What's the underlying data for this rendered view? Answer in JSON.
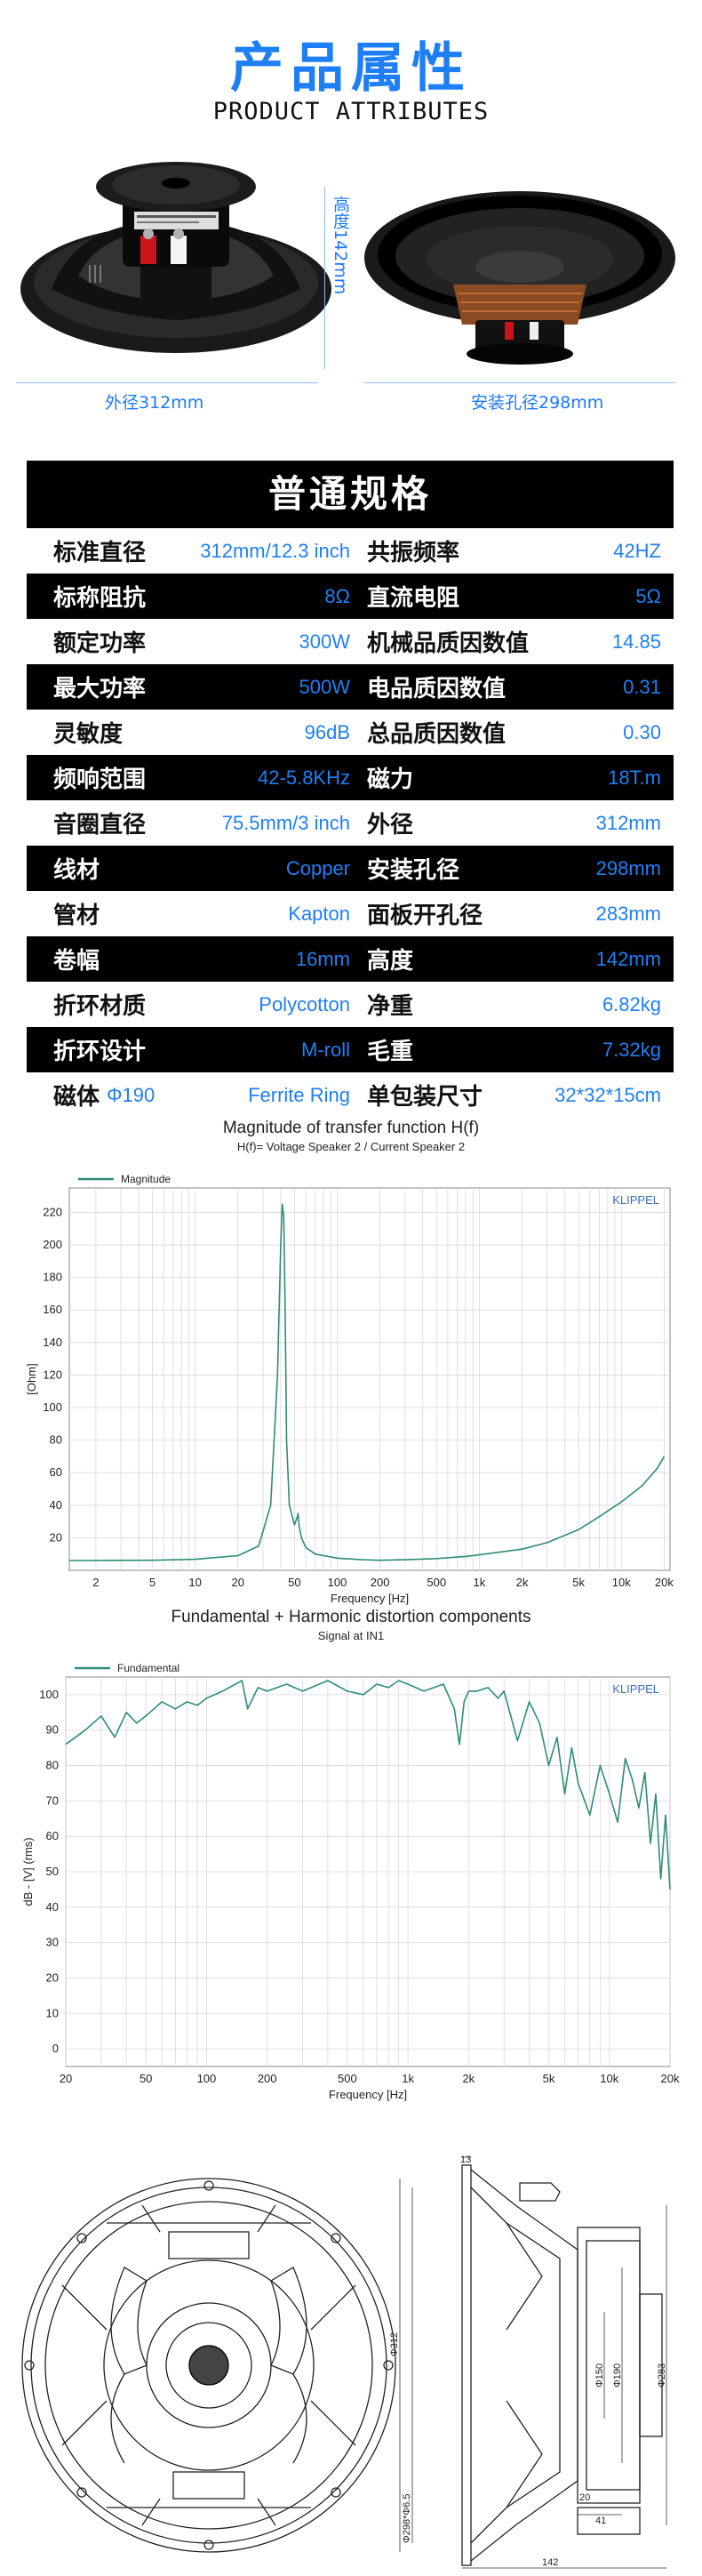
{
  "header": {
    "title": "产品属性",
    "subtitle": "PRODUCT ATTRIBUTES"
  },
  "photos": {
    "outer_diameter_label": "外径312mm",
    "height_label": "高度142mm",
    "mount_hole_label": "安装孔径298mm"
  },
  "spec": {
    "title": "普通规格",
    "rows": [
      {
        "l1": "标准直径",
        "v1": "312mm/12.3 inch",
        "l2": "共振频率",
        "v2": "42HZ"
      },
      {
        "l1": "标称阻抗",
        "v1": "8Ω",
        "l2": "直流电阻",
        "v2": "5Ω"
      },
      {
        "l1": "额定功率",
        "v1": "300W",
        "l2": "机械品质因数值",
        "v2": "14.85"
      },
      {
        "l1": "最大功率",
        "v1": "500W",
        "l2": "电品质因数值",
        "v2": "0.31"
      },
      {
        "l1": "灵敏度",
        "v1": "96dB",
        "l2": "总品质因数值",
        "v2": "0.30"
      },
      {
        "l1": "频响范围",
        "v1": "42-5.8KHz",
        "l2": "磁力",
        "v2": "18T.m"
      },
      {
        "l1": "音圈直径",
        "v1": "75.5mm/3 inch",
        "l2": "外径",
        "v2": "312mm"
      },
      {
        "l1": "线材",
        "v1": "Copper",
        "l2": "安装孔径",
        "v2": "298mm"
      },
      {
        "l1": "管材",
        "v1": "Kapton",
        "l2": "面板开孔径",
        "v2": "283mm"
      },
      {
        "l1": "卷幅",
        "v1": "16mm",
        "l2": "高度",
        "v2": "142mm"
      },
      {
        "l1": "折环材质",
        "v1": "Polycotton",
        "l2": "净重",
        "v2": "6.82kg"
      },
      {
        "l1": "折环设计",
        "v1": "M-roll",
        "l2": "毛重",
        "v2": "7.32kg"
      },
      {
        "l1": "磁体",
        "v1a": "Φ190",
        "v1": "Ferrite Ring",
        "l2": "单包装尺寸",
        "v2": "32*32*15cm"
      }
    ]
  },
  "chart_data": [
    {
      "type": "line",
      "title": "Magnitude of transfer function H(f)",
      "subtitle": "H(f)= Voltage Speaker 2 / Current Speaker 2",
      "brand": "KLIPPEL",
      "xlabel": "Frequency [Hz]",
      "ylabel": "[Ohm]",
      "xscale": "log",
      "xlim": [
        1.3,
        22000
      ],
      "ylim": [
        0,
        235
      ],
      "x_ticks": [
        2,
        5,
        10,
        20,
        50,
        100,
        200,
        500,
        1000,
        2000,
        5000,
        10000,
        20000
      ],
      "x_tick_labels": [
        "2",
        "5",
        "10",
        "20",
        "50",
        "100",
        "200",
        "500",
        "1k",
        "2k",
        "5k",
        "10k",
        "20k"
      ],
      "y_ticks": [
        20,
        40,
        60,
        80,
        100,
        120,
        140,
        160,
        180,
        200,
        220
      ],
      "legend_position": "top-left",
      "series": [
        {
          "name": "Magnitude",
          "color": "#2e8b7a",
          "x": [
            1.3,
            5,
            10,
            20,
            28,
            34,
            38,
            40,
            41,
            42,
            43,
            44,
            46,
            50,
            52,
            53,
            54,
            56,
            60,
            70,
            80,
            100,
            150,
            200,
            300,
            500,
            800,
            1000,
            2000,
            3000,
            5000,
            7000,
            10000,
            14000,
            18000,
            20000
          ],
          "y": [
            6,
            6.2,
            6.8,
            9,
            15,
            40,
            120,
            200,
            225,
            218,
            160,
            80,
            40,
            28,
            32,
            35,
            27,
            20,
            14,
            10,
            9,
            7.5,
            6.5,
            6.2,
            6.5,
            7.2,
            8.5,
            9.5,
            13,
            17,
            25,
            33,
            42,
            52,
            63,
            70
          ]
        }
      ]
    },
    {
      "type": "line",
      "title": "Fundamental + Harmonic distortion components",
      "subtitle": "Signal at IN1",
      "brand": "KLIPPEL",
      "xlabel": "Frequency [Hz]",
      "ylabel": "dB - [V] (rms)",
      "xscale": "log",
      "xlim": [
        20,
        20000
      ],
      "ylim": [
        -5,
        105
      ],
      "x_ticks": [
        20,
        50,
        100,
        200,
        500,
        1000,
        2000,
        5000,
        10000,
        20000
      ],
      "x_tick_labels": [
        "20",
        "50",
        "100",
        "200",
        "500",
        "1k",
        "2k",
        "5k",
        "10k",
        "20k"
      ],
      "y_ticks": [
        0,
        10,
        20,
        30,
        40,
        50,
        60,
        70,
        80,
        90,
        100
      ],
      "legend_position": "top-left",
      "series": [
        {
          "name": "Fundamental",
          "color": "#2e8b7a",
          "x": [
            20,
            25,
            30,
            35,
            40,
            45,
            50,
            60,
            70,
            80,
            90,
            100,
            120,
            150,
            160,
            180,
            200,
            250,
            300,
            400,
            500,
            600,
            700,
            800,
            900,
            1000,
            1200,
            1500,
            1700,
            1800,
            1900,
            2000,
            2200,
            2500,
            2800,
            3000,
            3500,
            4000,
            4500,
            5000,
            5500,
            6000,
            6500,
            7000,
            8000,
            9000,
            10000,
            11000,
            12000,
            13000,
            14000,
            15000,
            16000,
            17000,
            18000,
            19000,
            20000
          ],
          "y": [
            86,
            90,
            94,
            88,
            95,
            92,
            94,
            98,
            96,
            98,
            97,
            99,
            101,
            104,
            96,
            102,
            101,
            103,
            101,
            104,
            101,
            100,
            103,
            102,
            104,
            103,
            101,
            103,
            96,
            86,
            98,
            101,
            101,
            102,
            99,
            101,
            87,
            98,
            92,
            80,
            88,
            72,
            85,
            75,
            66,
            80,
            72,
            64,
            82,
            76,
            68,
            78,
            58,
            72,
            48,
            66,
            45
          ]
        }
      ]
    }
  ],
  "drawing": {
    "dims": {
      "top": "13",
      "d312": "Φ312",
      "d298": "Φ298*Φ6.5",
      "d150": "Φ150",
      "d190": "Φ190",
      "d283": "Φ283",
      "w20": "20",
      "w41": "41",
      "w142": "142"
    }
  }
}
